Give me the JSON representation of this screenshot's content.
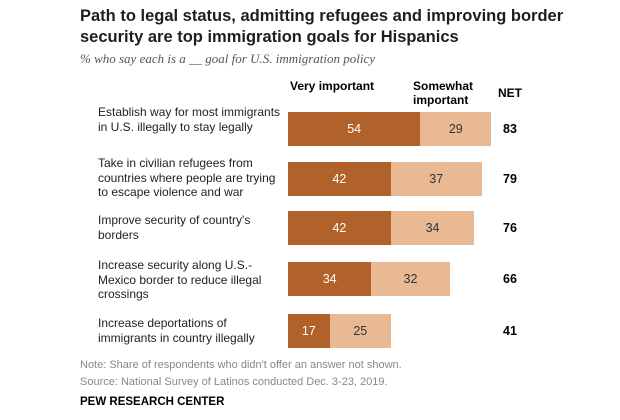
{
  "title": "Path to legal status, admitting refugees and improving border security are top immigration goals for Hispanics",
  "subtitle": "% who say each is a __ goal for U.S. immigration policy",
  "headers": {
    "very": "Very important",
    "somewhat": "Somewhat important",
    "net": "NET"
  },
  "chart_data": {
    "type": "bar",
    "orientation": "horizontal",
    "stacked": true,
    "categories": [
      "Establish way for most immigrants in U.S. illegally to stay legally",
      "Take in civilian refugees from countries where people are trying to escape violence and war",
      "Improve security of country's borders",
      "Increase security along U.S.-Mexico border to reduce illegal crossings",
      "Increase deportations of immigrants in country illegally"
    ],
    "series": [
      {
        "name": "Very important",
        "values": [
          54,
          42,
          42,
          34,
          17
        ],
        "color": "#b0622a"
      },
      {
        "name": "Somewhat important",
        "values": [
          29,
          37,
          34,
          32,
          25
        ],
        "color": "#e9b994"
      }
    ],
    "net": [
      83,
      79,
      76,
      66,
      41
    ],
    "xlim": [
      0,
      100
    ],
    "grid": false
  },
  "footer": {
    "note": "Note: Share of respondents who didn't offer an answer not shown.",
    "source": "Source: National Survey of Latinos conducted Dec. 3-23, 2019.",
    "org": "PEW RESEARCH CENTER"
  }
}
